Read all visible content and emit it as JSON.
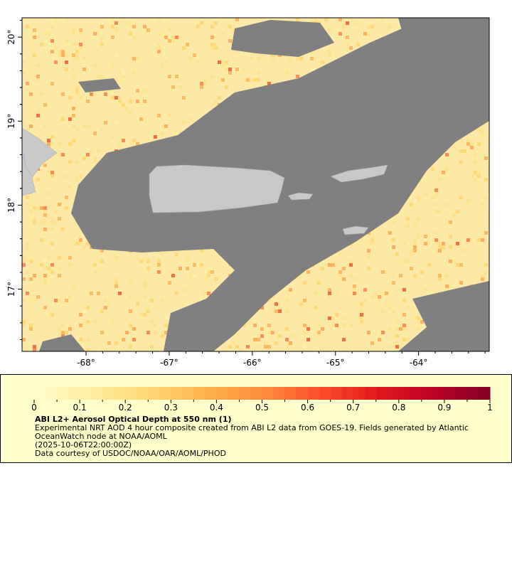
{
  "map": {
    "lon_ticks": [
      "-68°",
      "-67°",
      "-66°",
      "-65°",
      "-64°"
    ],
    "lon_values": [
      -68,
      -67,
      -66,
      -65,
      -64
    ],
    "lat_ticks": [
      "20°",
      "19°",
      "18°",
      "17°"
    ],
    "lat_values": [
      20,
      19,
      18,
      17
    ],
    "lon_range": [
      -68.77,
      -63.15
    ],
    "lat_range": [
      16.26,
      20.23
    ],
    "colors": {
      "nodata": "#808080",
      "land": "#c8c8c8",
      "low_aod": "#fde9a6",
      "border": "#000000"
    }
  },
  "legend": {
    "colorbar_range": [
      0,
      1
    ],
    "colorbar_ticks": [
      "0",
      "0.1",
      "0.2",
      "0.3",
      "0.4",
      "0.5",
      "0.6",
      "0.7",
      "0.8",
      "0.9",
      "1"
    ],
    "colorbar_colors": [
      "#ffffcc",
      "#ffeda0",
      "#fed976",
      "#feb24c",
      "#fd8d3c",
      "#fc4e2a",
      "#e31a1c",
      "#bd0026",
      "#800026"
    ],
    "title": "ABI L2+ Aerosol Optical Depth at 550 nm (1)",
    "line1": "Experimental NRT AOD 4 hour composite created from ABI L2 data from GOES-19. Fields generated by Atlantic",
    "line2": "OceanWatch node at NOAA/AOML",
    "line3": "(2025-10-06T22:00:00Z)",
    "line4": "Data courtesy of USDOC/NOAA/OAR/AOML/PHOD"
  }
}
